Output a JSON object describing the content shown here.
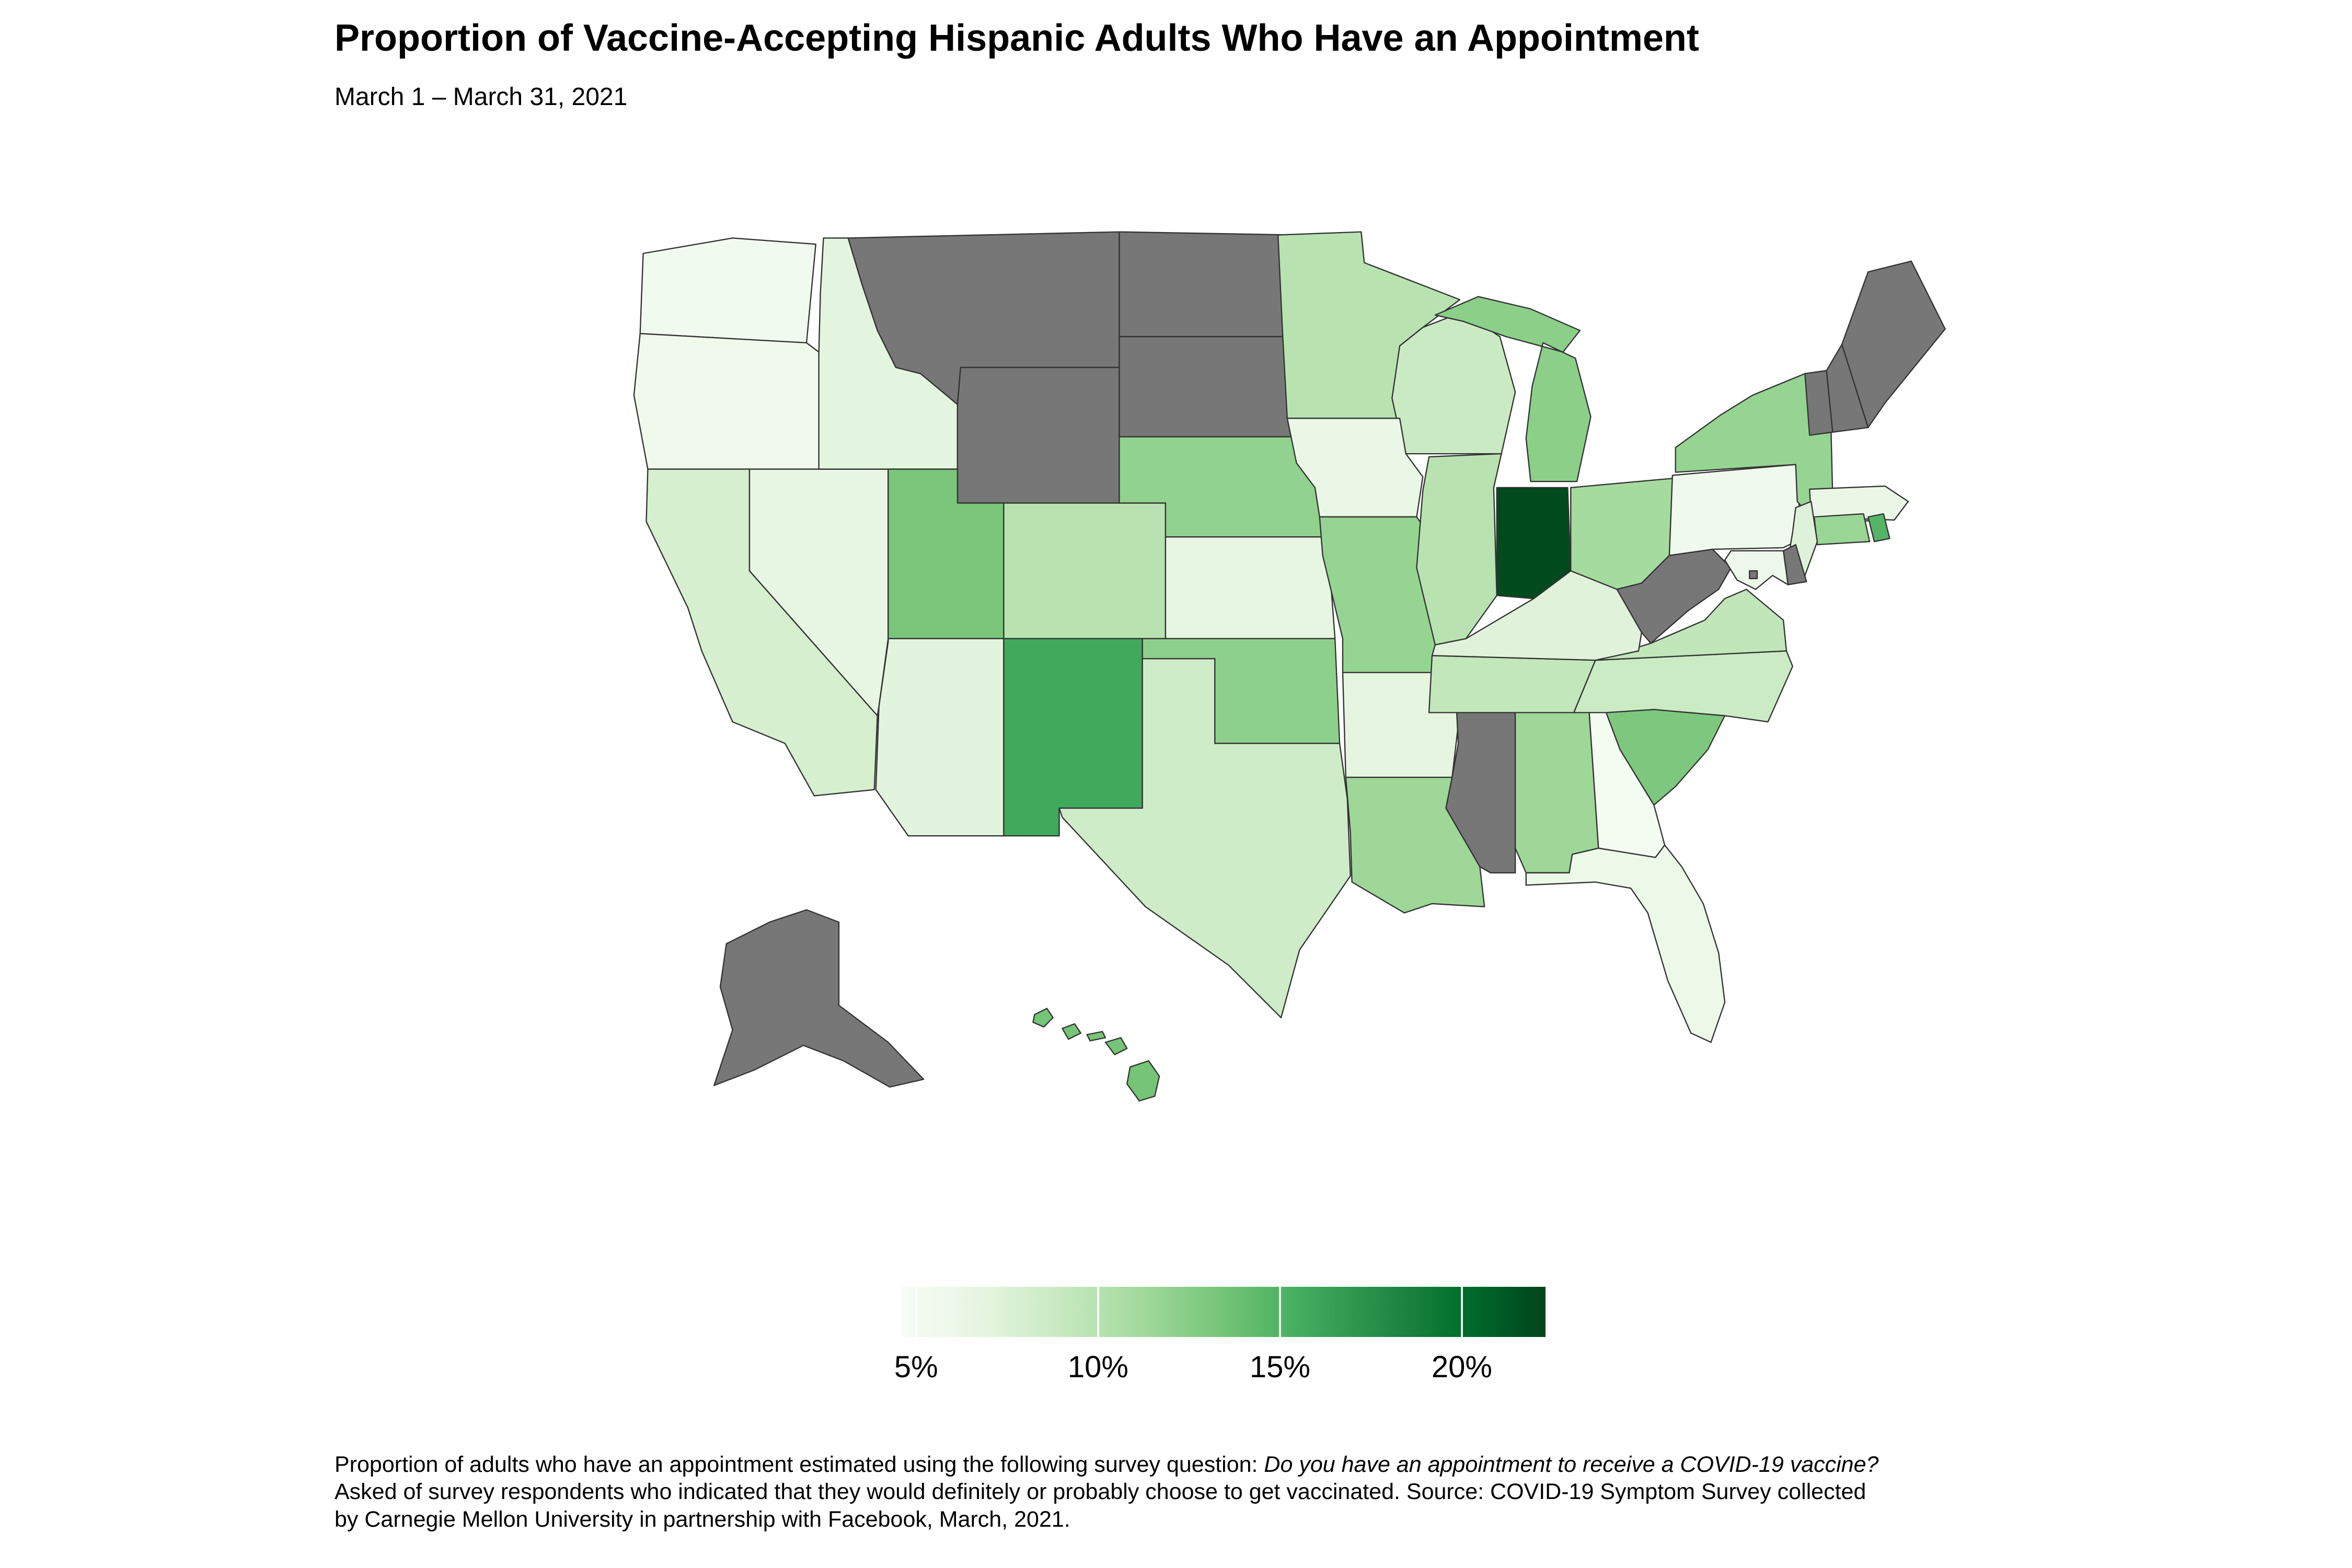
{
  "header": {
    "title": "Proportion of Vaccine-Accepting Hispanic Adults Who Have an Appointment",
    "subtitle": "March 1 – March 31, 2021"
  },
  "chart_data": {
    "type": "choropleth",
    "title": "Proportion of Vaccine-Accepting Hispanic Adults Who Have an Appointment",
    "subtitle": "March 1 – March 31, 2021",
    "unit": "%",
    "color_scale": {
      "type": "linear-gradient-greens",
      "stops": [
        "#f7fcf5",
        "#e5f5e0",
        "#c7e9c0",
        "#a1d99b",
        "#74c476",
        "#41ab5d",
        "#238b45",
        "#006d2c",
        "#00441b"
      ],
      "domain": [
        4.6,
        22.3
      ],
      "no_data_color": "#777777",
      "state_border_color": "#333333"
    },
    "legend": {
      "position": "bottom-center",
      "ticks": [
        {
          "value": 5,
          "label": "5%"
        },
        {
          "value": 10,
          "label": "10%"
        },
        {
          "value": 15,
          "label": "15%"
        },
        {
          "value": 20,
          "label": "20%"
        }
      ]
    },
    "states": [
      {
        "name": "Alabama",
        "abbr": "AL",
        "value": 11.4
      },
      {
        "name": "Alaska",
        "abbr": "AK",
        "value": null
      },
      {
        "name": "Arizona",
        "abbr": "AZ",
        "value": 7.0
      },
      {
        "name": "Arkansas",
        "abbr": "AR",
        "value": 6.8
      },
      {
        "name": "California",
        "abbr": "CA",
        "value": 8.0
      },
      {
        "name": "Colorado",
        "abbr": "CO",
        "value": 9.9
      },
      {
        "name": "Connecticut",
        "abbr": "CT",
        "value": 11.6
      },
      {
        "name": "Delaware",
        "abbr": "DE",
        "value": null
      },
      {
        "name": "District of Columbia",
        "abbr": "DC",
        "value": null
      },
      {
        "name": "Florida",
        "abbr": "FL",
        "value": 6.0
      },
      {
        "name": "Georgia",
        "abbr": "GA",
        "value": 5.0
      },
      {
        "name": "Hawaii",
        "abbr": "HI",
        "value": 13.4
      },
      {
        "name": "Idaho",
        "abbr": "ID",
        "value": 6.9
      },
      {
        "name": "Illinois",
        "abbr": "IL",
        "value": 9.9
      },
      {
        "name": "Indiana",
        "abbr": "IN",
        "value": 22.0
      },
      {
        "name": "Iowa",
        "abbr": "IA",
        "value": 6.2
      },
      {
        "name": "Kansas",
        "abbr": "KS",
        "value": 6.6
      },
      {
        "name": "Kentucky",
        "abbr": "KY",
        "value": 7.2
      },
      {
        "name": "Louisiana",
        "abbr": "LA",
        "value": 11.4
      },
      {
        "name": "Maine",
        "abbr": "ME",
        "value": null
      },
      {
        "name": "Maryland",
        "abbr": "MD",
        "value": 5.8
      },
      {
        "name": "Massachusetts",
        "abbr": "MA",
        "value": 6.2
      },
      {
        "name": "Michigan",
        "abbr": "MI",
        "value": 12.3
      },
      {
        "name": "Minnesota",
        "abbr": "MN",
        "value": 9.9
      },
      {
        "name": "Mississippi",
        "abbr": "MS",
        "value": null
      },
      {
        "name": "Missouri",
        "abbr": "MO",
        "value": 11.8
      },
      {
        "name": "Montana",
        "abbr": "MT",
        "value": null
      },
      {
        "name": "Nebraska",
        "abbr": "NE",
        "value": 12.0
      },
      {
        "name": "Nevada",
        "abbr": "NV",
        "value": 6.4
      },
      {
        "name": "New Hampshire",
        "abbr": "NH",
        "value": null
      },
      {
        "name": "New Jersey",
        "abbr": "NJ",
        "value": 7.4
      },
      {
        "name": "New Mexico",
        "abbr": "NM",
        "value": 15.8
      },
      {
        "name": "New York",
        "abbr": "NY",
        "value": 11.8
      },
      {
        "name": "North Carolina",
        "abbr": "NC",
        "value": 8.7
      },
      {
        "name": "North Dakota",
        "abbr": "ND",
        "value": null
      },
      {
        "name": "Ohio",
        "abbr": "OH",
        "value": 11.0
      },
      {
        "name": "Oklahoma",
        "abbr": "OK",
        "value": 12.2
      },
      {
        "name": "Oregon",
        "abbr": "OR",
        "value": 5.5
      },
      {
        "name": "Pennsylvania",
        "abbr": "PA",
        "value": 5.4
      },
      {
        "name": "Rhode Island",
        "abbr": "RI",
        "value": 14.8
      },
      {
        "name": "South Carolina",
        "abbr": "SC",
        "value": 13.0
      },
      {
        "name": "South Dakota",
        "abbr": "SD",
        "value": null
      },
      {
        "name": "Tennessee",
        "abbr": "TN",
        "value": 9.3
      },
      {
        "name": "Texas",
        "abbr": "TX",
        "value": 8.5
      },
      {
        "name": "Utah",
        "abbr": "UT",
        "value": 13.2
      },
      {
        "name": "Vermont",
        "abbr": "VT",
        "value": null
      },
      {
        "name": "Virginia",
        "abbr": "VA",
        "value": 9.4
      },
      {
        "name": "Washington",
        "abbr": "WA",
        "value": 5.3
      },
      {
        "name": "West Virginia",
        "abbr": "WV",
        "value": null
      },
      {
        "name": "Wisconsin",
        "abbr": "WI",
        "value": 8.8
      },
      {
        "name": "Wyoming",
        "abbr": "WY",
        "value": null
      }
    ]
  },
  "footnote": {
    "line1_normal": "Proportion of adults who have an appointment estimated using the following survey question: ",
    "line1_italic": "Do you have an appointment to receive a COVID-19 vaccine?",
    "line2": "Asked of survey respondents who indicated that they would definitely or probably choose to get vaccinated. Source: COVID-19 Symptom Survey collected",
    "line3": "by Carnegie Mellon University in partnership with Facebook, March, 2021."
  }
}
